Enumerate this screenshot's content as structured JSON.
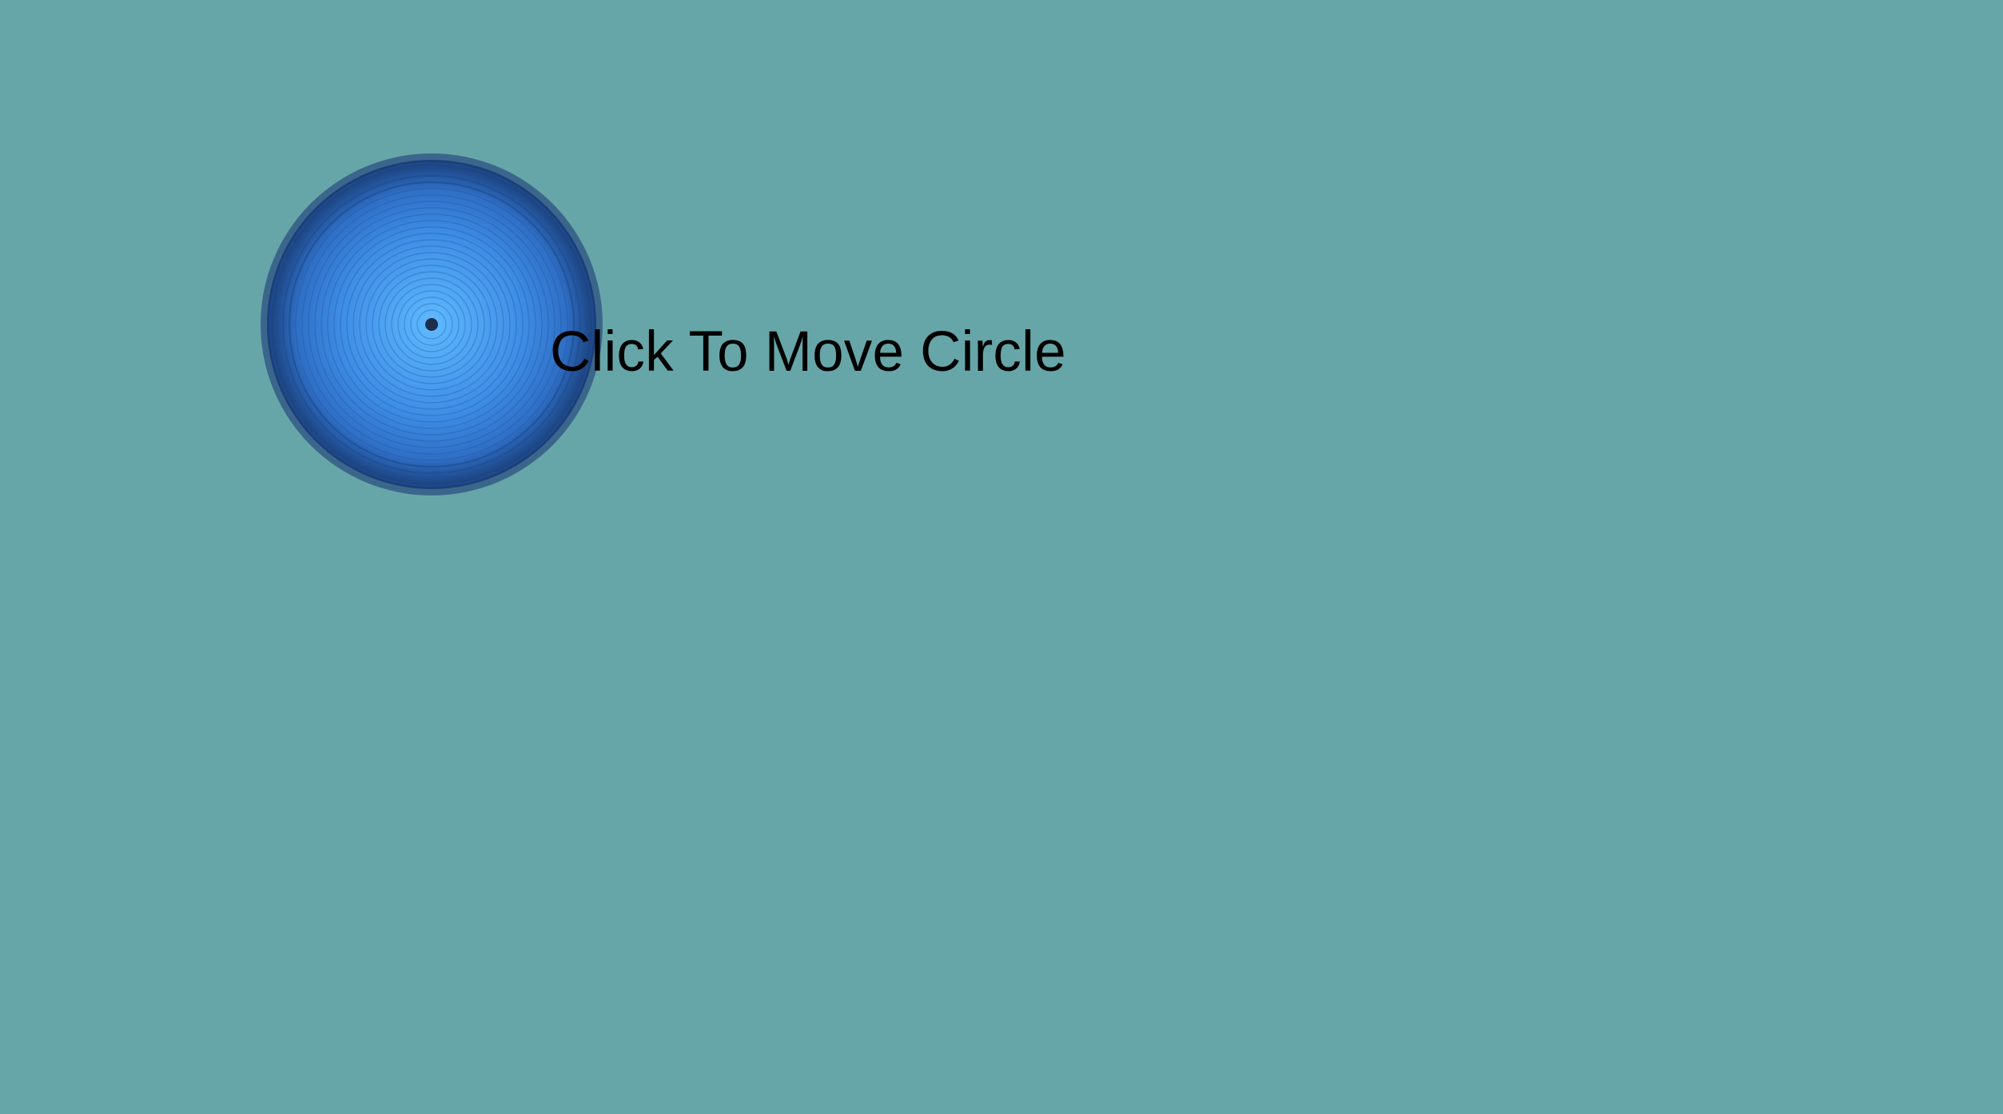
{
  "page": {
    "instruction": "Click To Move Circle"
  },
  "colors": {
    "background": "#67a6a8",
    "circle_outer": "#1b3d75",
    "circle_mid": "#3c84e0",
    "circle_inner": "#5ab4ff",
    "center_dot": "#1d2d4a",
    "text": "#000000"
  },
  "icons": {
    "circle": "concentric-blue-circle-icon",
    "center": "center-dot-icon"
  }
}
